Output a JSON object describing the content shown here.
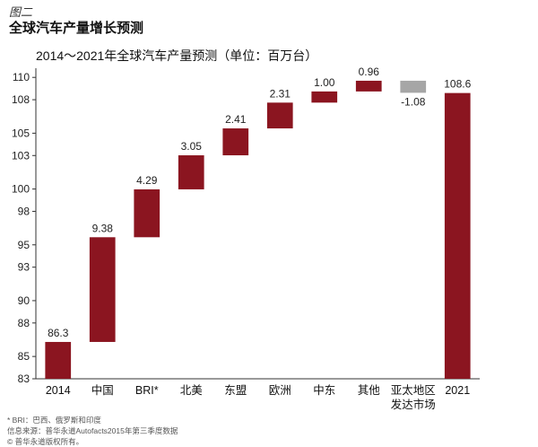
{
  "figure_label": "图二",
  "figure_title": "全球汽车产量增长预测",
  "chart_data": {
    "type": "bar",
    "subtype": "waterfall",
    "title": "2014～2021年全球汽车产量预测（单位：百万台）",
    "unit": "百万台",
    "categories": [
      "2014",
      "中国",
      "BRI*",
      "北美",
      "东盟",
      "欧洲",
      "中东",
      "其他",
      [
        "亚太地区",
        "发达市场"
      ],
      "2021"
    ],
    "values": [
      86.3,
      9.38,
      4.29,
      3.05,
      2.41,
      2.31,
      1.0,
      0.96,
      -1.08,
      108.6
    ],
    "value_labels": [
      "86.3",
      "9.38",
      "4.29",
      "3.05",
      "2.41",
      "2.31",
      "1.00",
      "0.96",
      "-1.08",
      "108.6"
    ],
    "kinds": [
      "total",
      "delta",
      "delta",
      "delta",
      "delta",
      "delta",
      "delta",
      "delta",
      "delta",
      "total"
    ],
    "yticks": [
      83,
      85,
      88,
      90,
      93,
      95,
      98,
      100,
      103,
      105,
      108,
      110
    ],
    "ylim": [
      83,
      110.5
    ],
    "grid": false,
    "colors": {
      "positive": "#8b1520",
      "negative": "#a6a6a6",
      "axis": "#333333"
    }
  },
  "notes": [
    "* BRI：巴西、俄罗斯和印度",
    "信息来源：普华永道Autofacts2015年第三季度数据",
    "© 普华永道版权所有。"
  ]
}
